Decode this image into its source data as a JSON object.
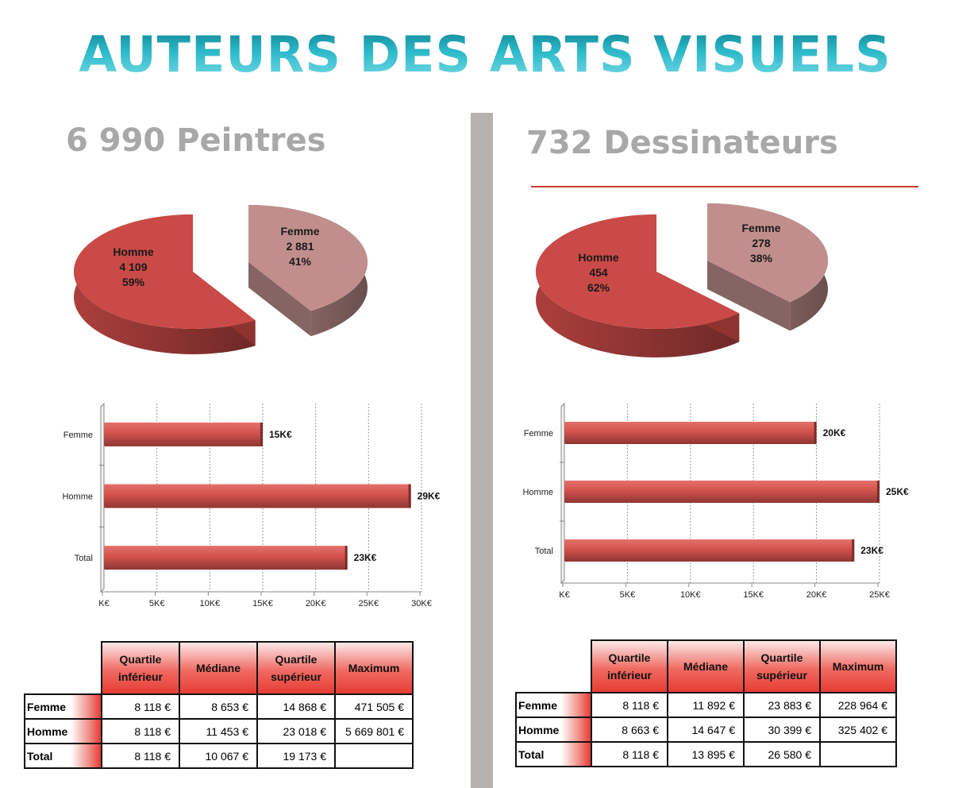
{
  "title": "AUTEURS DES ARTS VISUELS",
  "left": {
    "heading": "6 990 Peintres",
    "pie": {
      "type": "pie",
      "slices": [
        {
          "label": "Homme",
          "value_text": "4 109",
          "pct_text": "59%",
          "value": 4109,
          "color": "#c94a46"
        },
        {
          "label": "Femme",
          "value_text": "2 881",
          "pct_text": "41%",
          "value": 2881,
          "color": "#c08f8d"
        }
      ]
    },
    "bar": {
      "type": "bar",
      "orientation": "horizontal",
      "categories": [
        "Femme",
        "Homme",
        "Total"
      ],
      "values": [
        15,
        29,
        23
      ],
      "value_labels": [
        "15K€",
        "29K€",
        "23K€"
      ],
      "xticks": [
        "K€",
        "5K€",
        "10K€",
        "15K€",
        "20K€",
        "25K€",
        "30K€"
      ],
      "xlim": [
        0,
        30
      ]
    },
    "table": {
      "headers": [
        "Quartile inférieur",
        "Médiane",
        "Quartile supérieur",
        "Maximum"
      ],
      "rows": [
        {
          "label": "Femme",
          "cells": [
            "8 118 €",
            "8 653 €",
            "14 868 €",
            "471 505 €"
          ]
        },
        {
          "label": "Homme",
          "cells": [
            "8 118 €",
            "11 453 €",
            "23 018 €",
            "5 669 801 €"
          ]
        },
        {
          "label": "Total",
          "cells": [
            "8 118 €",
            "10 067 €",
            "19 173 €",
            ""
          ]
        }
      ]
    }
  },
  "right": {
    "heading": "732 Dessinateurs",
    "pie": {
      "type": "pie",
      "slices": [
        {
          "label": "Homme",
          "value_text": "454",
          "pct_text": "62%",
          "value": 454,
          "color": "#c94a46"
        },
        {
          "label": "Femme",
          "value_text": "278",
          "pct_text": "38%",
          "value": 278,
          "color": "#c08f8d"
        }
      ]
    },
    "bar": {
      "type": "bar",
      "orientation": "horizontal",
      "categories": [
        "Femme",
        "Homme",
        "Total"
      ],
      "values": [
        20,
        25,
        23
      ],
      "value_labels": [
        "20K€",
        "25K€",
        "23K€"
      ],
      "xticks": [
        "K€",
        "5K€",
        "10K€",
        "15K€",
        "20K€",
        "25K€"
      ],
      "xlim": [
        0,
        25
      ]
    },
    "table": {
      "headers": [
        "Quartile inférieur",
        "Médiane",
        "Quartile supérieur",
        "Maximum"
      ],
      "rows": [
        {
          "label": "Femme",
          "cells": [
            "8 118 €",
            "11 892 €",
            "23 883 €",
            "228 964 €"
          ]
        },
        {
          "label": "Homme",
          "cells": [
            "8 663 €",
            "14 647 €",
            "30 399 €",
            "325 402 €"
          ]
        },
        {
          "label": "Total",
          "cells": [
            "8 118 €",
            "13 895 €",
            "26 580 €",
            ""
          ]
        }
      ]
    }
  },
  "chart_data": [
    {
      "type": "pie",
      "title": "6 990 Peintres",
      "categories": [
        "Homme",
        "Femme"
      ],
      "values": [
        4109,
        2881
      ],
      "percentages": [
        59,
        41
      ]
    },
    {
      "type": "bar",
      "categories": [
        "Femme",
        "Homme",
        "Total"
      ],
      "values": [
        15,
        29,
        23
      ],
      "unit": "K€",
      "xlim": [
        0,
        30
      ]
    },
    {
      "type": "table",
      "columns": [
        "Quartile inférieur",
        "Médiane",
        "Quartile supérieur",
        "Maximum"
      ],
      "rows": [
        [
          "Femme",
          "8 118 €",
          "8 653 €",
          "14 868 €",
          "471 505 €"
        ],
        [
          "Homme",
          "8 118 €",
          "11 453 €",
          "23 018 €",
          "5 669 801 €"
        ],
        [
          "Total",
          "8 118 €",
          "10 067 €",
          "19 173 €",
          ""
        ]
      ]
    },
    {
      "type": "pie",
      "title": "732 Dessinateurs",
      "categories": [
        "Homme",
        "Femme"
      ],
      "values": [
        454,
        278
      ],
      "percentages": [
        62,
        38
      ]
    },
    {
      "type": "bar",
      "categories": [
        "Femme",
        "Homme",
        "Total"
      ],
      "values": [
        20,
        25,
        23
      ],
      "unit": "K€",
      "xlim": [
        0,
        25
      ]
    },
    {
      "type": "table",
      "columns": [
        "Quartile inférieur",
        "Médiane",
        "Quartile supérieur",
        "Maximum"
      ],
      "rows": [
        [
          "Femme",
          "8 118 €",
          "11 892 €",
          "23 883 €",
          "228 964 €"
        ],
        [
          "Homme",
          "8 663 €",
          "14 647 €",
          "30 399 €",
          "325 402 €"
        ],
        [
          "Total",
          "8 118 €",
          "13 895 €",
          "26 580 €",
          ""
        ]
      ]
    }
  ]
}
